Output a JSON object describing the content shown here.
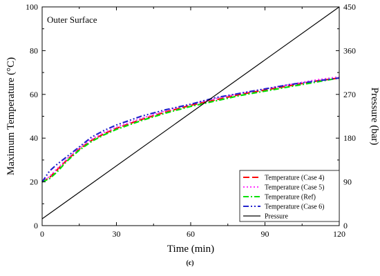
{
  "chart_data": {
    "type": "line",
    "annotation": "Outer Surface",
    "caption": "(c)",
    "xlabel": "Time (min)",
    "ylabel": "Maximum Temperature (°C)",
    "ylabel_right": "Pressure (bar)",
    "xlim": [
      0,
      120
    ],
    "ylim": [
      0,
      100
    ],
    "ylim_right": [
      0,
      450
    ],
    "x_ticks": [
      "0",
      "30",
      "60",
      "90",
      "120"
    ],
    "y_ticks": [
      "0",
      "20",
      "40",
      "60",
      "80",
      "100"
    ],
    "y_ticks_right": [
      "0",
      "90",
      "180",
      "270",
      "360",
      "450"
    ],
    "x_tick_values": [
      0,
      30,
      60,
      90,
      120
    ],
    "y_tick_values": [
      0,
      20,
      40,
      60,
      80,
      100
    ],
    "y_right_tick_values": [
      0,
      90,
      180,
      270,
      360,
      450
    ],
    "legend_position": "bottom-right",
    "series": [
      {
        "name": "Temperature (Case 4)",
        "color": "#ff0000",
        "axis": "left",
        "x": [
          0,
          3,
          6,
          10,
          15,
          20,
          25,
          30,
          40,
          50,
          60,
          70,
          80,
          90,
          100,
          110,
          120
        ],
        "y": [
          20,
          22,
          25.5,
          30,
          35,
          39,
          42,
          44.5,
          48.5,
          52,
          55,
          57.5,
          60,
          62,
          64,
          66,
          67.5
        ]
      },
      {
        "name": "Temperature (Case 5)",
        "color": "#ff33ff",
        "axis": "left",
        "x": [
          0,
          3,
          6,
          10,
          15,
          20,
          25,
          30,
          40,
          50,
          60,
          70,
          80,
          90,
          100,
          110,
          120
        ],
        "y": [
          20,
          22.5,
          26,
          30.5,
          35.5,
          39.5,
          42.5,
          45,
          49,
          52.5,
          55.5,
          58,
          60.5,
          62.5,
          64.5,
          66.5,
          68
        ]
      },
      {
        "name": "Temperature (Ref)",
        "color": "#00e000",
        "axis": "left",
        "x": [
          0,
          3,
          6,
          10,
          15,
          20,
          25,
          30,
          40,
          50,
          60,
          70,
          80,
          90,
          100,
          110,
          120
        ],
        "y": [
          20,
          21.5,
          24.5,
          29.5,
          34.5,
          38.5,
          41.5,
          44,
          48,
          51.5,
          54.5,
          57,
          59.5,
          61.5,
          63.5,
          65.5,
          67.5
        ]
      },
      {
        "name": "Temperature (Case 6)",
        "color": "#2222cc",
        "axis": "left",
        "x": [
          0,
          3,
          6,
          10,
          15,
          20,
          25,
          30,
          40,
          50,
          60,
          70,
          80,
          90,
          100,
          110,
          120
        ],
        "y": [
          20,
          25,
          28,
          31.5,
          36,
          40.5,
          43.5,
          46,
          50,
          53,
          55.5,
          58.5,
          60.5,
          62.5,
          64.5,
          66,
          67.5
        ]
      },
      {
        "name": "Pressure",
        "color": "#000000",
        "axis": "right",
        "x": [
          0,
          120
        ],
        "y": [
          14,
          450
        ]
      }
    ]
  }
}
